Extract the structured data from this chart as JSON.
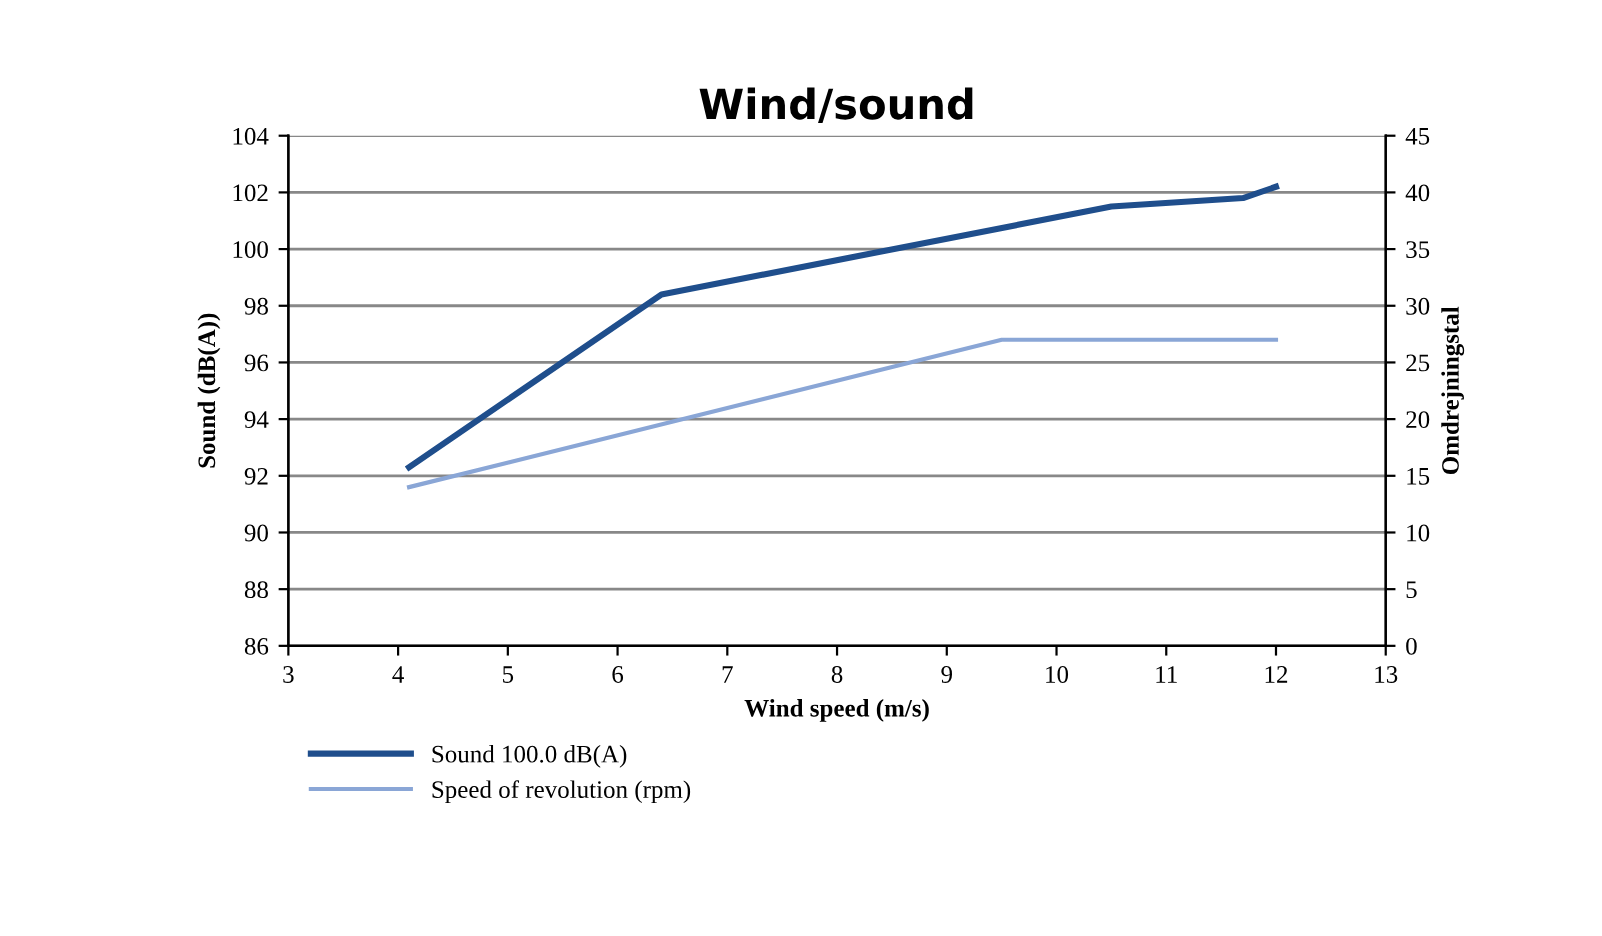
{
  "chart_data": {
    "type": "line",
    "title": "Wind/sound",
    "xlabel": "Wind speed (m/s)",
    "ylabel": "Sound (dB(A))",
    "y2label": "Omdrejningstal",
    "series": [
      {
        "name": "Sound 100.0 dB(A)",
        "color": "#1f4e8c",
        "x": [
          4.1,
          6.4,
          10.5,
          11.7,
          12
        ],
        "values": [
          92.3,
          98.4,
          101.5,
          101.8,
          102.2
        ]
      },
      {
        "name": "Speed of revolution (rpm)",
        "color": "#8aa6d6",
        "axis": "y2",
        "x": [
          4.1,
          9.5,
          12
        ],
        "values": [
          14,
          27,
          27
        ]
      }
    ],
    "xlim": [
      3,
      13
    ],
    "xticks": [
      3,
      4,
      5,
      6,
      7,
      8,
      9,
      10,
      11,
      12,
      13
    ],
    "ylim": [
      86,
      104
    ],
    "yticks": [
      86,
      88,
      90,
      92,
      94,
      96,
      98,
      100,
      102,
      104
    ],
    "y2lim": [
      0,
      45
    ],
    "y2ticks": [
      0,
      5,
      10,
      15,
      20,
      25,
      30,
      35,
      40,
      45
    ],
    "grid": "y",
    "legend": "bottom left",
    "marker": "none",
    "line_style": "solid"
  }
}
